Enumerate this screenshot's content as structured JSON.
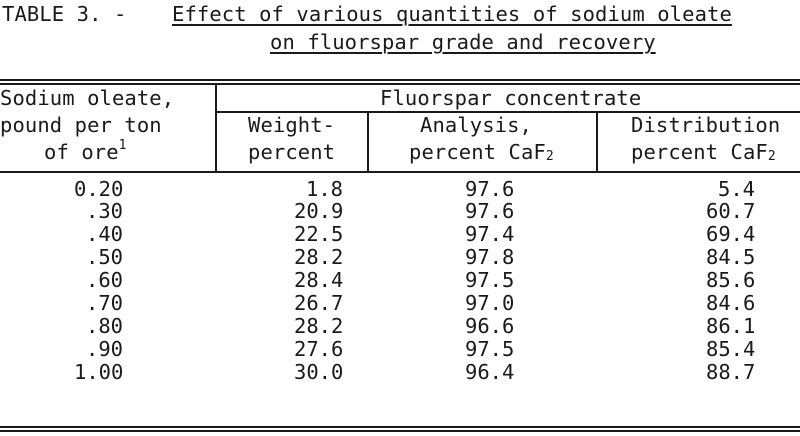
{
  "table": {
    "label": "TABLE 3. -",
    "title_line1": "Effect of various quantities of sodium oleate",
    "title_line2": "on fluorspar grade and recovery",
    "headers": {
      "col1": [
        "Sodium oleate,",
        "pound per ton",
        "of ore",
        "1"
      ],
      "group": "Fluorspar concentrate",
      "col2": [
        "Weight-",
        "percent"
      ],
      "col3": [
        "Analysis,",
        "percent CaF",
        "2"
      ],
      "col4": [
        "Distribution",
        "percent CaF",
        "2"
      ]
    },
    "rows": [
      {
        "oleate": "0.20",
        "weight": "1.8",
        "analysis": "97.6",
        "distribution": "5.4"
      },
      {
        "oleate": ".30",
        "weight": "20.9",
        "analysis": "97.6",
        "distribution": "60.7"
      },
      {
        "oleate": ".40",
        "weight": "22.5",
        "analysis": "97.4",
        "distribution": "69.4"
      },
      {
        "oleate": ".50",
        "weight": "28.2",
        "analysis": "97.8",
        "distribution": "84.5"
      },
      {
        "oleate": ".60",
        "weight": "28.4",
        "analysis": "97.5",
        "distribution": "85.6"
      },
      {
        "oleate": ".70",
        "weight": "26.7",
        "analysis": "97.0",
        "distribution": "84.6"
      },
      {
        "oleate": ".80",
        "weight": "28.2",
        "analysis": "96.6",
        "distribution": "86.1"
      },
      {
        "oleate": ".90",
        "weight": "27.6",
        "analysis": "97.5",
        "distribution": "85.4"
      },
      {
        "oleate": "1.00",
        "weight": "30.0",
        "analysis": "96.4",
        "distribution": "88.7"
      }
    ]
  }
}
